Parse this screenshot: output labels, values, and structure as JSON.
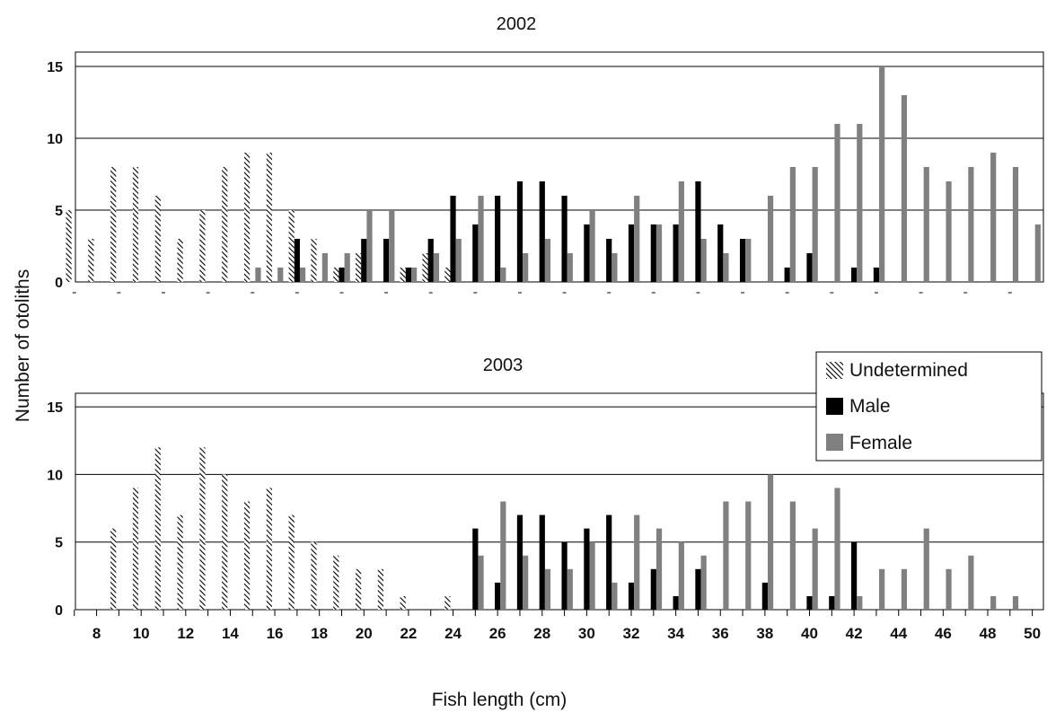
{
  "chart_data": {
    "type": "bar",
    "ylabel": "Number of otoliths",
    "xlabel": "Fish length (cm)",
    "x": [
      7,
      8,
      9,
      10,
      11,
      12,
      13,
      14,
      15,
      16,
      17,
      18,
      19,
      20,
      21,
      22,
      23,
      24,
      25,
      26,
      27,
      28,
      29,
      30,
      31,
      32,
      33,
      34,
      35,
      36,
      37,
      38,
      39,
      40,
      41,
      42,
      43,
      44,
      45,
      46,
      47,
      48,
      49,
      50
    ],
    "xticks": [
      8,
      10,
      12,
      14,
      16,
      18,
      20,
      22,
      24,
      26,
      28,
      30,
      32,
      34,
      36,
      38,
      40,
      42,
      44,
      46,
      48,
      50
    ],
    "yticks": [
      0,
      5,
      10,
      15
    ],
    "ylim": [
      0,
      16
    ],
    "legend": {
      "placement": "right, beside the 2003 panel",
      "entries": [
        {
          "name": "Undetermined",
          "pattern": "hatched"
        },
        {
          "name": "Male",
          "color": "#000000"
        },
        {
          "name": "Female",
          "color": "#808080"
        }
      ]
    },
    "panels": [
      {
        "title": "2002",
        "series": [
          {
            "name": "Undetermined",
            "values": [
              5,
              3,
              8,
              8,
              6,
              3,
              5,
              8,
              9,
              9,
              5,
              3,
              1,
              2,
              0,
              1,
              2,
              1,
              0,
              0,
              0,
              0,
              0,
              0,
              0,
              0,
              0,
              0,
              0,
              0,
              0,
              0,
              0,
              0,
              0,
              0,
              0,
              0,
              0,
              0,
              0,
              0,
              0,
              0
            ]
          },
          {
            "name": "Male",
            "values": [
              0,
              0,
              0,
              0,
              0,
              0,
              0,
              0,
              0,
              0,
              3,
              0,
              1,
              3,
              3,
              1,
              3,
              6,
              4,
              6,
              7,
              7,
              6,
              4,
              3,
              4,
              4,
              4,
              7,
              4,
              3,
              0,
              1,
              2,
              0,
              1,
              1,
              0,
              0,
              0,
              0,
              0,
              0,
              0
            ]
          },
          {
            "name": "Female",
            "values": [
              0,
              0,
              0,
              0,
              0,
              0,
              0,
              0,
              1,
              1,
              1,
              2,
              2,
              5,
              5,
              1,
              2,
              3,
              6,
              1,
              2,
              3,
              2,
              5,
              2,
              6,
              4,
              7,
              3,
              2,
              3,
              6,
              8,
              8,
              11,
              11,
              15,
              13,
              8,
              7,
              8,
              9,
              8,
              4
            ]
          }
        ]
      },
      {
        "title": "2003",
        "series": [
          {
            "name": "Undetermined",
            "values": [
              0,
              0,
              6,
              9,
              12,
              7,
              12,
              10,
              8,
              9,
              7,
              5,
              4,
              3,
              3,
              1,
              0,
              1,
              0,
              0,
              0,
              0,
              0,
              0,
              0,
              0,
              0,
              0,
              0,
              0,
              0,
              0,
              0,
              0,
              0,
              0,
              0,
              0,
              0,
              0,
              0,
              0,
              0,
              0
            ]
          },
          {
            "name": "Male",
            "values": [
              0,
              0,
              0,
              0,
              0,
              0,
              0,
              0,
              0,
              0,
              0,
              0,
              0,
              0,
              0,
              0,
              0,
              0,
              6,
              2,
              7,
              7,
              5,
              6,
              7,
              2,
              3,
              1,
              3,
              0,
              0,
              2,
              0,
              1,
              1,
              5,
              0,
              0,
              0,
              0,
              0,
              0,
              0,
              0
            ]
          },
          {
            "name": "Female",
            "values": [
              0,
              0,
              0,
              0,
              0,
              0,
              0,
              0,
              0,
              0,
              0,
              0,
              0,
              0,
              0,
              0,
              0,
              0,
              4,
              8,
              4,
              3,
              3,
              5,
              2,
              7,
              6,
              5,
              4,
              8,
              8,
              10,
              8,
              6,
              9,
              1,
              3,
              3,
              6,
              3,
              4,
              1,
              1,
              0
            ]
          }
        ]
      }
    ]
  }
}
